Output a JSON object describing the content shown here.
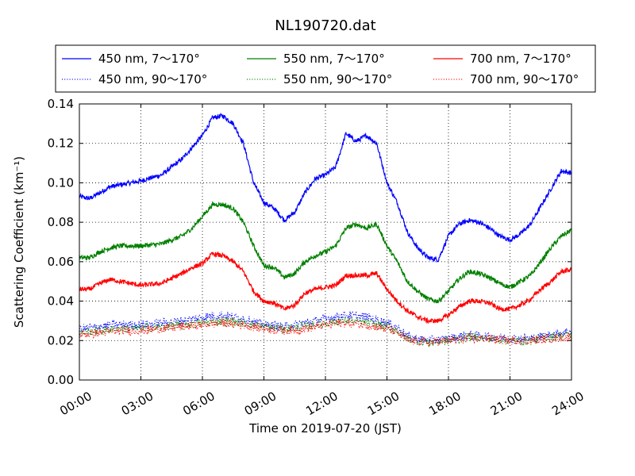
{
  "chart_data": {
    "type": "line",
    "title": "NL190720.dat",
    "xlabel": "Time on 2019-07-20 (JST)",
    "ylabel": "Scattering Coefficient (km⁻¹)",
    "x_unit": "hours",
    "xlim": [
      0,
      24
    ],
    "ylim": [
      0,
      0.14
    ],
    "xticks": [
      0,
      3,
      6,
      9,
      12,
      15,
      18,
      21,
      24
    ],
    "xtick_labels": [
      "00:00",
      "03:00",
      "06:00",
      "09:00",
      "12:00",
      "15:00",
      "18:00",
      "21:00",
      "24:00"
    ],
    "yticks": [
      0,
      0.02,
      0.04,
      0.06,
      0.08,
      0.1,
      0.12,
      0.14
    ],
    "ytick_labels": [
      "0.00",
      "0.02",
      "0.04",
      "0.06",
      "0.08",
      "0.10",
      "0.12",
      "0.14"
    ],
    "grid": true,
    "legend_position": "top",
    "series": [
      {
        "name": "450 nm, 7～170°",
        "color": "#0000ff",
        "style": "solid",
        "x": [
          0,
          0.5,
          1,
          1.5,
          2,
          3,
          4,
          5,
          5.5,
          6,
          6.5,
          7,
          7.5,
          8,
          8.5,
          9,
          9.5,
          10,
          10.5,
          11,
          11.5,
          12,
          12.5,
          13,
          13.5,
          14,
          14.5,
          15,
          15.5,
          16,
          16.5,
          17,
          17.5,
          18,
          18.5,
          19,
          19.5,
          20,
          20.5,
          21,
          21.5,
          22,
          22.5,
          23,
          23.5,
          24
        ],
        "y": [
          0.093,
          0.092,
          0.095,
          0.098,
          0.099,
          0.101,
          0.104,
          0.112,
          0.118,
          0.124,
          0.133,
          0.134,
          0.13,
          0.12,
          0.1,
          0.09,
          0.087,
          0.081,
          0.085,
          0.095,
          0.102,
          0.104,
          0.108,
          0.125,
          0.121,
          0.124,
          0.12,
          0.1,
          0.09,
          0.075,
          0.067,
          0.062,
          0.061,
          0.073,
          0.079,
          0.081,
          0.08,
          0.077,
          0.073,
          0.071,
          0.074,
          0.079,
          0.088,
          0.097,
          0.106,
          0.105
        ]
      },
      {
        "name": "550 nm, 7～170°",
        "color": "#008000",
        "style": "solid",
        "x": [
          0,
          0.5,
          1,
          1.5,
          2,
          3,
          4,
          5,
          5.5,
          6,
          6.5,
          7,
          7.5,
          8,
          8.5,
          9,
          9.5,
          10,
          10.5,
          11,
          11.5,
          12,
          12.5,
          13,
          13.5,
          14,
          14.5,
          15,
          15.5,
          16,
          16.5,
          17,
          17.5,
          18,
          18.5,
          19,
          19.5,
          20,
          20.5,
          21,
          21.5,
          22,
          22.5,
          23,
          23.5,
          24
        ],
        "y": [
          0.062,
          0.062,
          0.065,
          0.067,
          0.068,
          0.068,
          0.069,
          0.073,
          0.077,
          0.083,
          0.089,
          0.089,
          0.087,
          0.08,
          0.068,
          0.058,
          0.057,
          0.052,
          0.054,
          0.06,
          0.063,
          0.065,
          0.068,
          0.077,
          0.079,
          0.077,
          0.079,
          0.068,
          0.06,
          0.05,
          0.045,
          0.041,
          0.04,
          0.045,
          0.051,
          0.055,
          0.054,
          0.052,
          0.049,
          0.047,
          0.05,
          0.053,
          0.06,
          0.067,
          0.073,
          0.076
        ]
      },
      {
        "name": "700 nm, 7～170°",
        "color": "#ff0000",
        "style": "solid",
        "x": [
          0,
          0.5,
          1,
          1.5,
          2,
          3,
          4,
          5,
          5.5,
          6,
          6.5,
          7,
          7.5,
          8,
          8.5,
          9,
          9.5,
          10,
          10.5,
          11,
          11.5,
          12,
          12.5,
          13,
          13.5,
          14,
          14.5,
          15,
          15.5,
          16,
          16.5,
          17,
          17.5,
          18,
          18.5,
          19,
          19.5,
          20,
          20.5,
          21,
          21.5,
          22,
          22.5,
          23,
          23.5,
          24
        ],
        "y": [
          0.046,
          0.046,
          0.049,
          0.051,
          0.05,
          0.048,
          0.049,
          0.054,
          0.057,
          0.059,
          0.064,
          0.063,
          0.06,
          0.055,
          0.045,
          0.04,
          0.039,
          0.036,
          0.038,
          0.044,
          0.046,
          0.047,
          0.048,
          0.053,
          0.053,
          0.053,
          0.054,
          0.046,
          0.04,
          0.035,
          0.032,
          0.03,
          0.03,
          0.033,
          0.037,
          0.04,
          0.04,
          0.039,
          0.036,
          0.036,
          0.038,
          0.041,
          0.046,
          0.05,
          0.055,
          0.056
        ]
      },
      {
        "name": "450 nm, 90～170°",
        "color": "#0000ff",
        "style": "dotted",
        "x": [
          0,
          1,
          2,
          3,
          4,
          5,
          6,
          7,
          8,
          9,
          10,
          11,
          12,
          13,
          14,
          15,
          15.5,
          16,
          17,
          18,
          19,
          20,
          21,
          22,
          23,
          24
        ],
        "y": [
          0.026,
          0.027,
          0.028,
          0.028,
          0.029,
          0.03,
          0.032,
          0.033,
          0.031,
          0.028,
          0.027,
          0.029,
          0.031,
          0.033,
          0.032,
          0.029,
          0.027,
          0.022,
          0.02,
          0.021,
          0.023,
          0.022,
          0.021,
          0.021,
          0.023,
          0.025
        ]
      },
      {
        "name": "550 nm, 90～170°",
        "color": "#008000",
        "style": "dotted",
        "x": [
          0,
          1,
          2,
          3,
          4,
          5,
          6,
          7,
          8,
          9,
          10,
          11,
          12,
          13,
          14,
          15,
          15.5,
          16,
          17,
          18,
          19,
          20,
          21,
          22,
          23,
          24
        ],
        "y": [
          0.024,
          0.025,
          0.026,
          0.026,
          0.027,
          0.028,
          0.029,
          0.03,
          0.029,
          0.027,
          0.026,
          0.027,
          0.029,
          0.03,
          0.029,
          0.027,
          0.025,
          0.021,
          0.019,
          0.02,
          0.022,
          0.021,
          0.02,
          0.02,
          0.022,
          0.023
        ]
      },
      {
        "name": "700 nm, 90～170°",
        "color": "#ff0000",
        "style": "dotted",
        "x": [
          0,
          1,
          2,
          3,
          4,
          5,
          6,
          7,
          8,
          9,
          10,
          11,
          12,
          13,
          14,
          15,
          15.5,
          16,
          17,
          18,
          19,
          20,
          21,
          22,
          23,
          24
        ],
        "y": [
          0.023,
          0.024,
          0.025,
          0.025,
          0.026,
          0.027,
          0.028,
          0.029,
          0.028,
          0.026,
          0.025,
          0.026,
          0.028,
          0.029,
          0.028,
          0.026,
          0.024,
          0.02,
          0.019,
          0.02,
          0.021,
          0.021,
          0.02,
          0.02,
          0.021,
          0.022
        ]
      }
    ]
  }
}
